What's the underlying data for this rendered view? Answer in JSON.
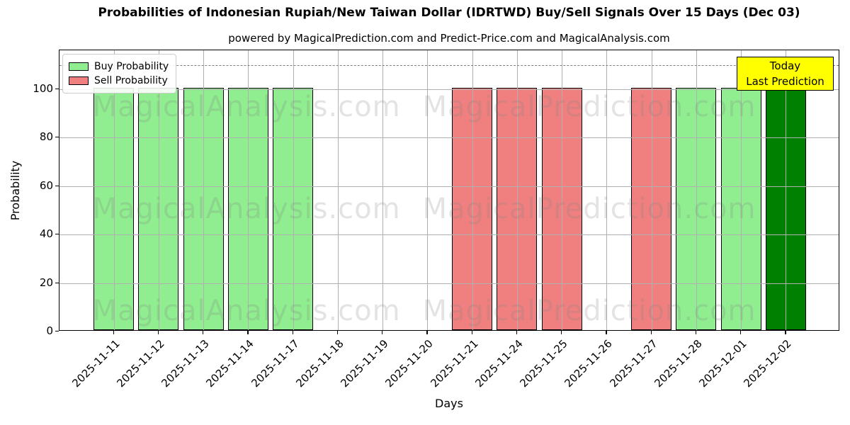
{
  "figure": {
    "title": "Probabilities of Indonesian Rupiah/New Taiwan Dollar (IDRTWD) Buy/Sell Signals Over 15 Days (Dec 03)",
    "subtitle": "powered by MagicalPrediction.com and Predict-Price.com and MagicalAnalysis.com"
  },
  "legend": {
    "items": [
      {
        "label": "Buy Probability",
        "color_key": "buy"
      },
      {
        "label": "Sell Probability",
        "color_key": "sell"
      }
    ]
  },
  "annotation": {
    "line1": "Today",
    "line2": "Last Prediction"
  },
  "watermarks": {
    "left_text": "MagicalAnalysis.com",
    "right_text": "MagicalPrediction.com"
  },
  "axes": {
    "xlabel": "Days",
    "ylabel": "Probability"
  },
  "chart_data": {
    "type": "bar",
    "title": "Probabilities of Indonesian Rupiah/New Taiwan Dollar (IDRTWD) Buy/Sell Signals Over 15 Days (Dec 03)",
    "xlabel": "Days",
    "ylabel": "Probability",
    "categories": [
      "2025-11-11",
      "2025-11-12",
      "2025-11-13",
      "2025-11-14",
      "2025-11-17",
      "2025-11-18",
      "2025-11-19",
      "2025-11-20",
      "2025-11-21",
      "2025-11-24",
      "2025-11-25",
      "2025-11-26",
      "2025-11-27",
      "2025-11-28",
      "2025-12-01",
      "2025-12-02"
    ],
    "series": [
      {
        "name": "Buy Probability",
        "values": [
          100,
          100,
          100,
          100,
          100,
          0,
          0,
          0,
          0,
          0,
          0,
          0,
          0,
          100,
          100,
          100
        ]
      },
      {
        "name": "Sell Probability",
        "values": [
          0,
          0,
          0,
          0,
          0,
          0,
          0,
          0,
          100,
          100,
          100,
          0,
          100,
          0,
          0,
          0
        ]
      }
    ],
    "today_index": 15,
    "threshold_line": 110,
    "ylim": [
      0,
      116
    ],
    "yticks": [
      0,
      20,
      40,
      60,
      80,
      100
    ],
    "grid": true,
    "legend_position": "upper left"
  },
  "colors": {
    "buy": "#90EE90",
    "sell": "#F08080",
    "today_buy": "#008000",
    "bar_edge": "#000000",
    "annotation_bg": "#FFFF00",
    "grid": "#b0b0b0",
    "threshold": "#7f7f7f",
    "watermark": "rgba(128,128,128,0.22)"
  }
}
